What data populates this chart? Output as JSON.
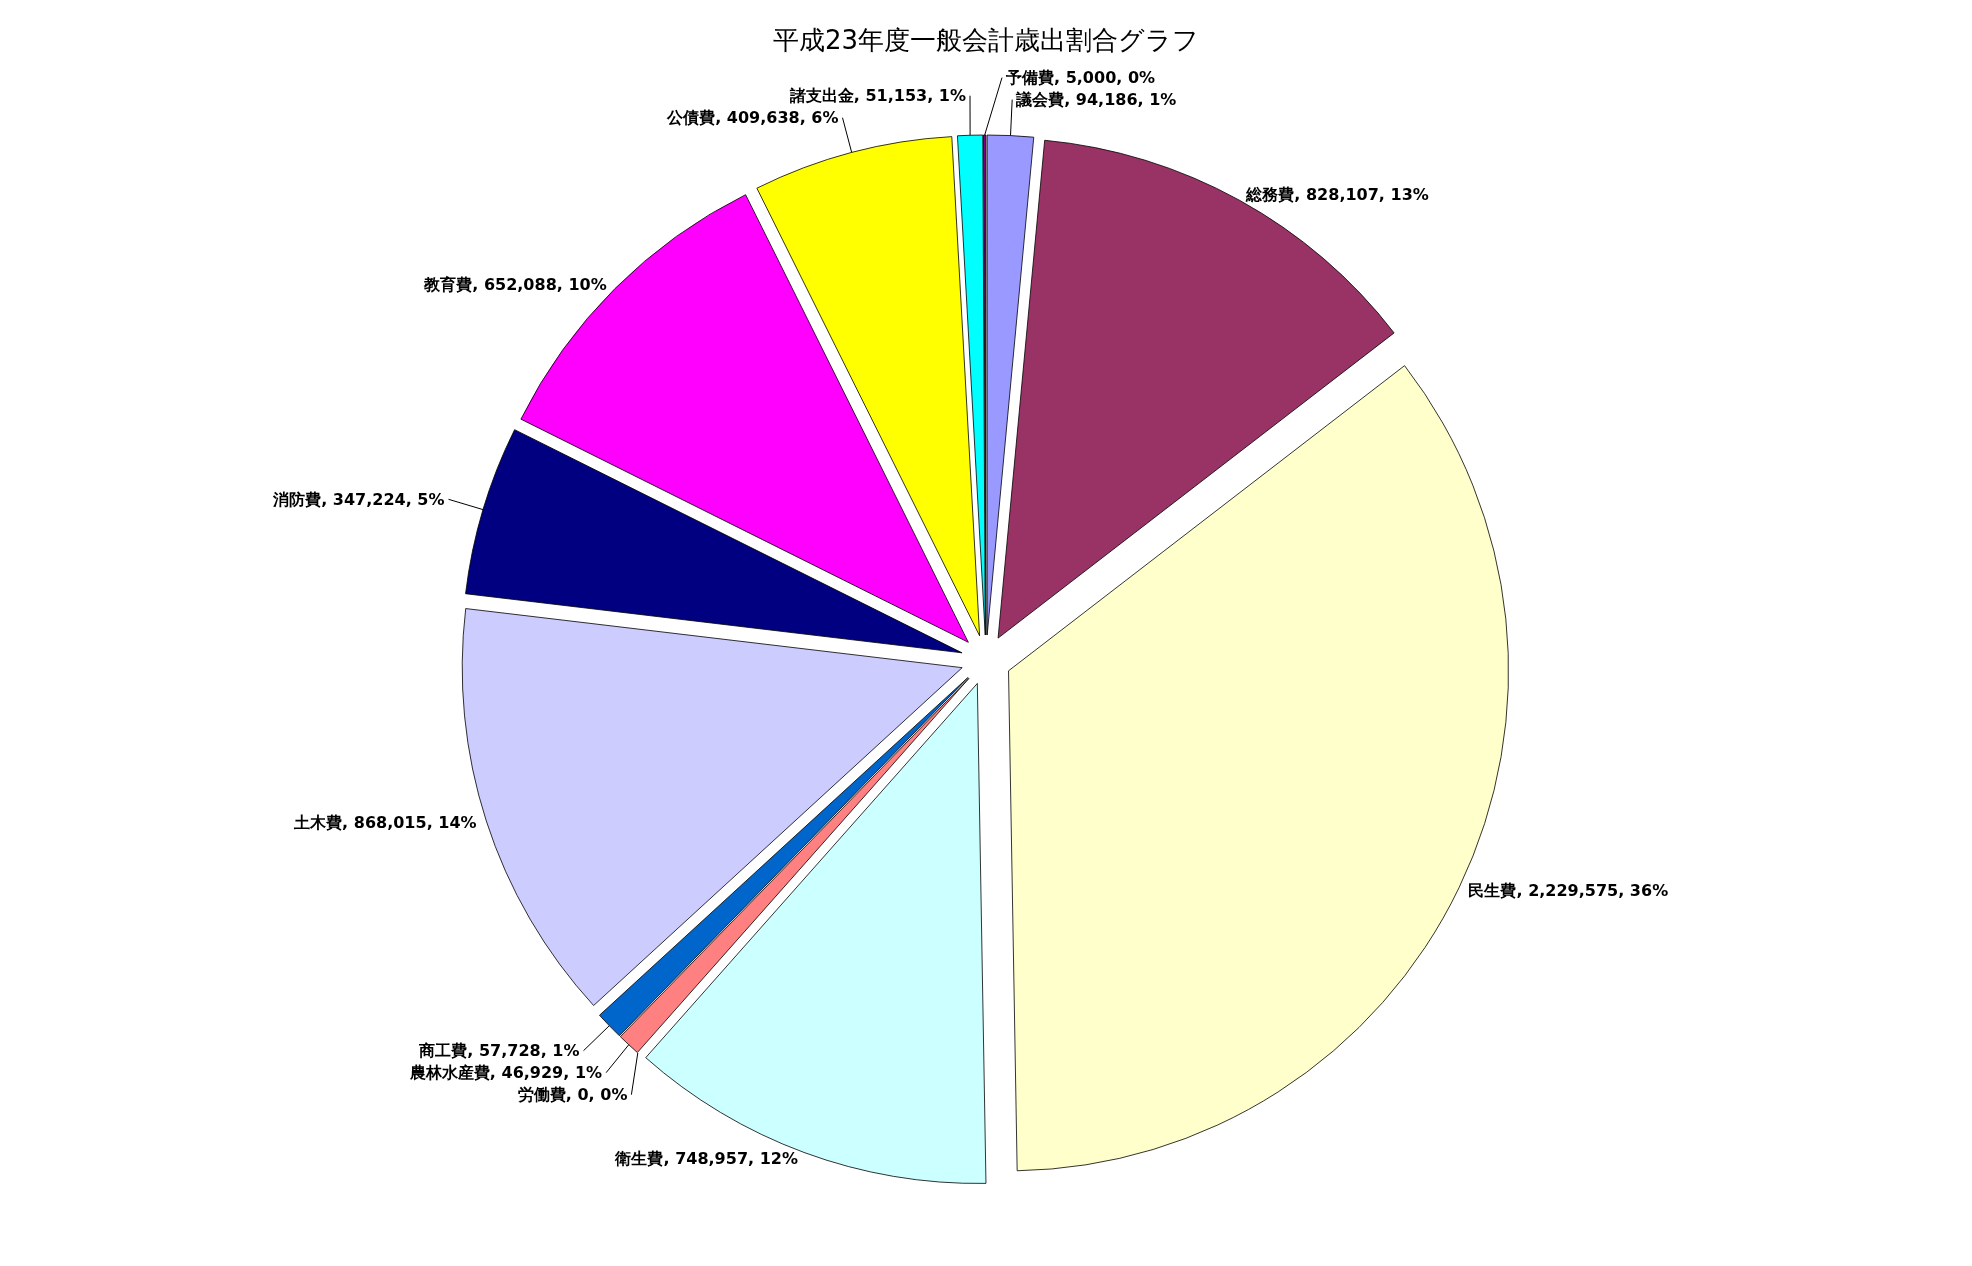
{
  "chart_data": {
    "type": "pie",
    "title": "平成23年度一般会計歳出割合グラフ",
    "categories": [
      "議会費",
      "総務費",
      "民生費",
      "衛生費",
      "労働費",
      "農林水産費",
      "商工費",
      "土木費",
      "消防費",
      "教育費",
      "公債費",
      "諸支出金",
      "予備費"
    ],
    "values": [
      94186,
      828107,
      2229575,
      748957,
      0,
      46929,
      57728,
      868015,
      347224,
      652088,
      409638,
      51153,
      5000
    ],
    "colors": [
      "#9999ff",
      "#993366",
      "#ffffcc",
      "#ccffff",
      null,
      "#ff8080",
      "#0066cc",
      "#ccccff",
      "#000080",
      "#ff00ff",
      "#ffff00",
      "#00ffff",
      "#800080"
    ],
    "value_labels": [
      ", 94,186, 1%",
      ", 828,107, 13%",
      ", 2,229,575, 36%",
      ", 748,957, 12%",
      ", 0, 0%",
      ", 46,929, 1%",
      ", 57,728, 1%",
      ", 868,015, 14%",
      ", 347,224, 5%",
      ", 652,088, 10%",
      ", 409,638, 6%",
      ", 51,153, 1%",
      ", 5,000, 0%"
    ]
  }
}
